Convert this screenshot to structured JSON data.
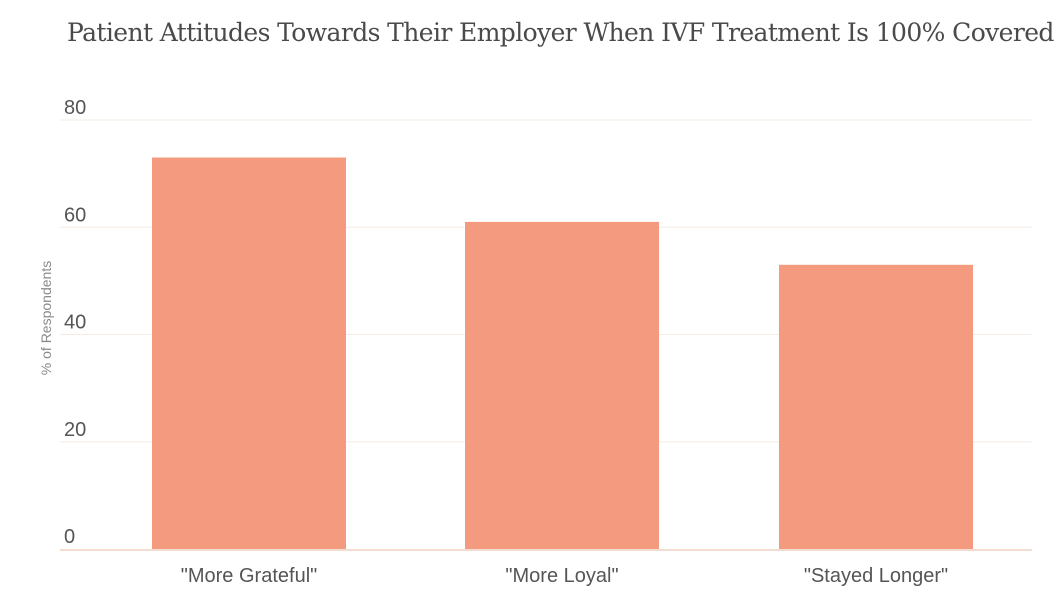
{
  "chart_data": {
    "type": "bar",
    "title": "Patient Attitudes Towards Their Employer When IVF Treatment Is 100% Covered",
    "xlabel": "",
    "ylabel": "% of Respondents",
    "categories": [
      "\"More Grateful\"",
      "\"More Loyal\"",
      "\"Stayed Longer\""
    ],
    "values": [
      73,
      61,
      53
    ],
    "ylim": [
      0,
      80
    ],
    "yticks": [
      0,
      20,
      40,
      60,
      80
    ],
    "grid": true,
    "bar_color": "#f49b7f",
    "grid_color": "#f6ece4",
    "baseline_color": "#f3ddd0"
  }
}
